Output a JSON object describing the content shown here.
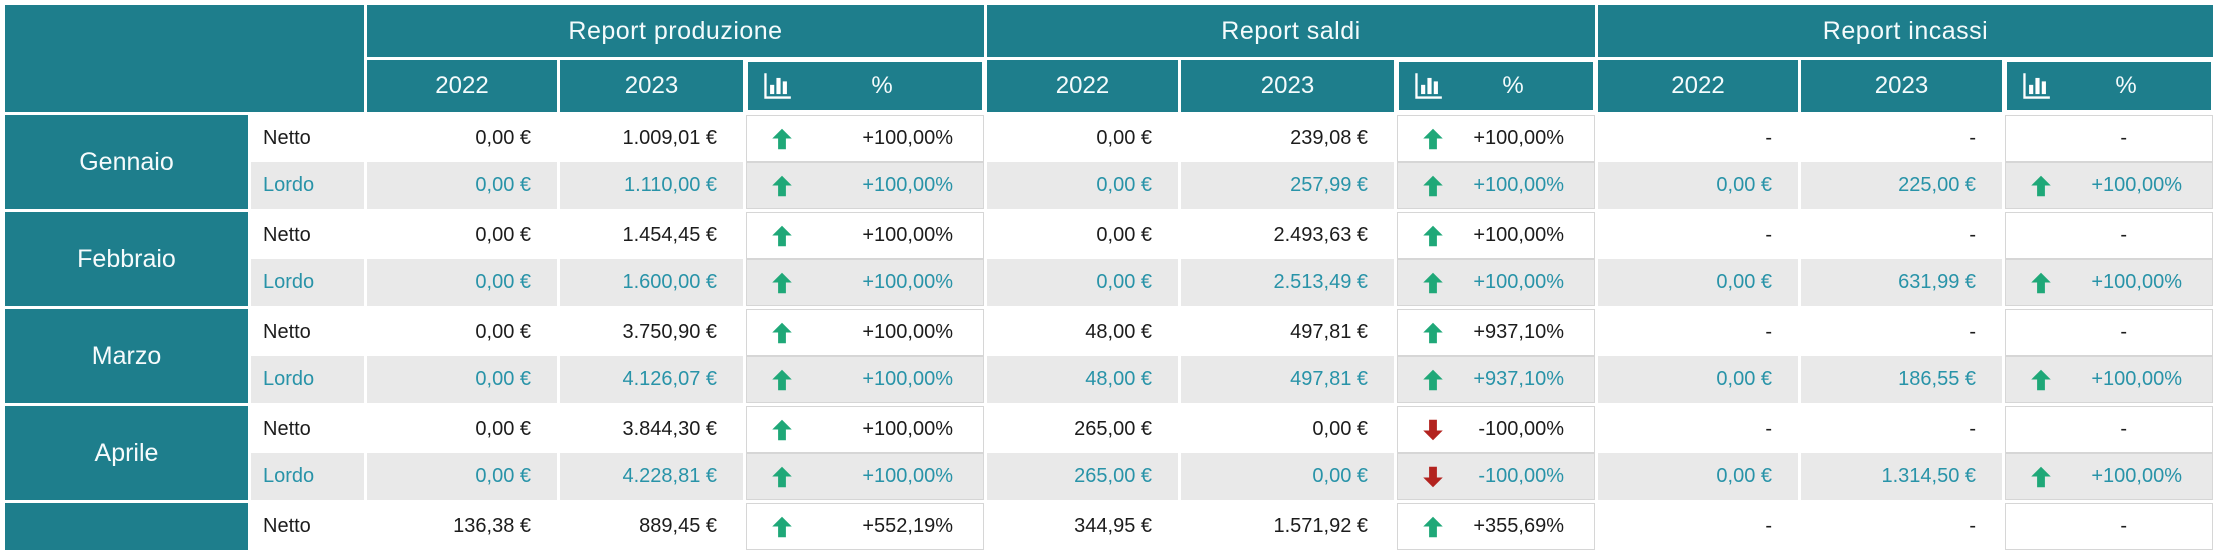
{
  "colors": {
    "header_teal": "#1e7e8c",
    "lordo_row_bg": "#e9e9e9",
    "lordo_text": "#2893a8",
    "netto_text": "#1c1c1c",
    "up_green": "#1fa878",
    "down_red": "#b3231f"
  },
  "icons": {
    "metric": "bar-chart-icon",
    "up": "arrow-up-icon",
    "down": "arrow-down-icon"
  },
  "header": {
    "groups": [
      {
        "title": "Report produzione",
        "y2022": "2022",
        "y2023": "2023",
        "pct_label": "%"
      },
      {
        "title": "Report saldi",
        "y2022": "2022",
        "y2023": "2023",
        "pct_label": "%"
      },
      {
        "title": "Report incassi",
        "y2022": "2022",
        "y2023": "2023",
        "pct_label": "%"
      }
    ]
  },
  "months": [
    {
      "name": "Gennaio",
      "rows": [
        {
          "label": "Netto",
          "produzione": {
            "y2022": "0,00 €",
            "y2023": "1.009,01 €",
            "trend": "up",
            "pct": "+100,00%"
          },
          "saldi": {
            "y2022": "0,00 €",
            "y2023": "239,08 €",
            "trend": "up",
            "pct": "+100,00%"
          },
          "incassi": {
            "y2022": "-",
            "y2023": "-",
            "trend": null,
            "pct": "-"
          }
        },
        {
          "label": "Lordo",
          "produzione": {
            "y2022": "0,00 €",
            "y2023": "1.110,00 €",
            "trend": "up",
            "pct": "+100,00%"
          },
          "saldi": {
            "y2022": "0,00 €",
            "y2023": "257,99 €",
            "trend": "up",
            "pct": "+100,00%"
          },
          "incassi": {
            "y2022": "0,00 €",
            "y2023": "225,00 €",
            "trend": "up",
            "pct": "+100,00%"
          }
        }
      ]
    },
    {
      "name": "Febbraio",
      "rows": [
        {
          "label": "Netto",
          "produzione": {
            "y2022": "0,00 €",
            "y2023": "1.454,45 €",
            "trend": "up",
            "pct": "+100,00%"
          },
          "saldi": {
            "y2022": "0,00 €",
            "y2023": "2.493,63 €",
            "trend": "up",
            "pct": "+100,00%"
          },
          "incassi": {
            "y2022": "-",
            "y2023": "-",
            "trend": null,
            "pct": "-"
          }
        },
        {
          "label": "Lordo",
          "produzione": {
            "y2022": "0,00 €",
            "y2023": "1.600,00 €",
            "trend": "up",
            "pct": "+100,00%"
          },
          "saldi": {
            "y2022": "0,00 €",
            "y2023": "2.513,49 €",
            "trend": "up",
            "pct": "+100,00%"
          },
          "incassi": {
            "y2022": "0,00 €",
            "y2023": "631,99 €",
            "trend": "up",
            "pct": "+100,00%"
          }
        }
      ]
    },
    {
      "name": "Marzo",
      "rows": [
        {
          "label": "Netto",
          "produzione": {
            "y2022": "0,00 €",
            "y2023": "3.750,90 €",
            "trend": "up",
            "pct": "+100,00%"
          },
          "saldi": {
            "y2022": "48,00 €",
            "y2023": "497,81 €",
            "trend": "up",
            "pct": "+937,10%"
          },
          "incassi": {
            "y2022": "-",
            "y2023": "-",
            "trend": null,
            "pct": "-"
          }
        },
        {
          "label": "Lordo",
          "produzione": {
            "y2022": "0,00 €",
            "y2023": "4.126,07 €",
            "trend": "up",
            "pct": "+100,00%"
          },
          "saldi": {
            "y2022": "48,00 €",
            "y2023": "497,81 €",
            "trend": "up",
            "pct": "+937,10%"
          },
          "incassi": {
            "y2022": "0,00 €",
            "y2023": "186,55 €",
            "trend": "up",
            "pct": "+100,00%"
          }
        }
      ]
    },
    {
      "name": "Aprile",
      "rows": [
        {
          "label": "Netto",
          "produzione": {
            "y2022": "0,00 €",
            "y2023": "3.844,30 €",
            "trend": "up",
            "pct": "+100,00%"
          },
          "saldi": {
            "y2022": "265,00 €",
            "y2023": "0,00 €",
            "trend": "down",
            "pct": "-100,00%"
          },
          "incassi": {
            "y2022": "-",
            "y2023": "-",
            "trend": null,
            "pct": "-"
          }
        },
        {
          "label": "Lordo",
          "produzione": {
            "y2022": "0,00 €",
            "y2023": "4.228,81 €",
            "trend": "up",
            "pct": "+100,00%"
          },
          "saldi": {
            "y2022": "265,00 €",
            "y2023": "0,00 €",
            "trend": "down",
            "pct": "-100,00%"
          },
          "incassi": {
            "y2022": "0,00 €",
            "y2023": "1.314,50 €",
            "trend": "up",
            "pct": "+100,00%"
          }
        }
      ]
    },
    {
      "name": "",
      "rows": [
        {
          "label": "Netto",
          "produzione": {
            "y2022": "136,38 €",
            "y2023": "889,45 €",
            "trend": "up",
            "pct": "+552,19%"
          },
          "saldi": {
            "y2022": "344,95 €",
            "y2023": "1.571,92 €",
            "trend": "up",
            "pct": "+355,69%"
          },
          "incassi": {
            "y2022": "-",
            "y2023": "-",
            "trend": null,
            "pct": "-"
          }
        }
      ]
    }
  ]
}
